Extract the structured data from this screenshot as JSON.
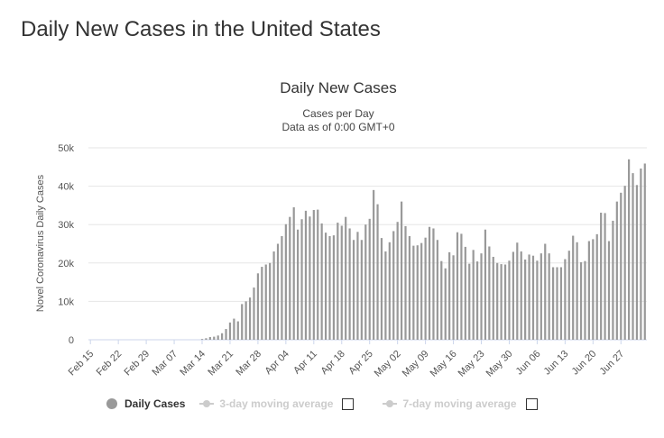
{
  "page_title": "Daily New Cases in the United States",
  "chart_data": {
    "type": "bar",
    "title": "Daily New Cases",
    "subtitle_lines": [
      "Cases per Day",
      "Data as of 0:00 GMT+0"
    ],
    "ylabel": "Novel Coronavirus Daily Cases",
    "xlabel": "",
    "ylim": [
      0,
      50000
    ],
    "yticks": [
      0,
      10000,
      20000,
      30000,
      40000,
      50000
    ],
    "ytick_labels": [
      "0",
      "10k",
      "20k",
      "30k",
      "40k",
      "50k"
    ],
    "xtick_labels": [
      "Feb 15",
      "Feb 22",
      "Feb 29",
      "Mar 07",
      "Mar 14",
      "Mar 21",
      "Mar 28",
      "Apr 04",
      "Apr 11",
      "Apr 18",
      "Apr 25",
      "May 02",
      "May 09",
      "May 16",
      "May 23",
      "May 30",
      "Jun 06",
      "Jun 13",
      "Jun 20",
      "Jun 27"
    ],
    "start_date": "Feb 15",
    "color": "#999999",
    "series": [
      {
        "name": "Daily Cases",
        "values": [
          0,
          0,
          0,
          0,
          0,
          0,
          0,
          0,
          0,
          0,
          0,
          0,
          0,
          0,
          0,
          0,
          0,
          0,
          0,
          0,
          0,
          0,
          0,
          0,
          0,
          0,
          0,
          0,
          200,
          400,
          700,
          800,
          1100,
          1700,
          2800,
          4500,
          5500,
          4800,
          9300,
          10000,
          11000,
          13600,
          17300,
          19000,
          19600,
          20000,
          23000,
          25000,
          27000,
          30100,
          32000,
          34500,
          28700,
          31400,
          33600,
          32100,
          33800,
          33900,
          30300,
          27900,
          27000,
          27200,
          30500,
          29700,
          32000,
          29000,
          26000,
          28100,
          26000,
          30000,
          31500,
          39000,
          35300,
          26500,
          23000,
          25400,
          28300,
          30700,
          36000,
          29600,
          27000,
          24500,
          24600,
          25200,
          26600,
          29400,
          29000,
          26000,
          20500,
          18600,
          22800,
          22000,
          28000,
          27600,
          24200,
          19800,
          23400,
          20400,
          22500,
          28700,
          24300,
          21600,
          20000,
          19700,
          19600,
          20600,
          22900,
          25300,
          23000,
          20900,
          22200,
          21900,
          20600,
          22500,
          25000,
          22500,
          18900,
          18900,
          18900,
          21000,
          23200,
          27100,
          25400,
          20200,
          20500,
          25700,
          26200,
          27500,
          33100,
          33000,
          25700,
          31000,
          36000,
          38300,
          40100,
          47000,
          43400,
          40300,
          44600,
          45900
        ]
      },
      {
        "name": "3-day moving average",
        "values": []
      },
      {
        "name": "7-day moving average",
        "values": []
      }
    ],
    "legend": {
      "position": "bottom-center",
      "items": [
        {
          "label": "Daily Cases",
          "active": true
        },
        {
          "label": "3-day moving average",
          "active": false
        },
        {
          "label": "7-day moving average",
          "active": false
        }
      ]
    }
  }
}
